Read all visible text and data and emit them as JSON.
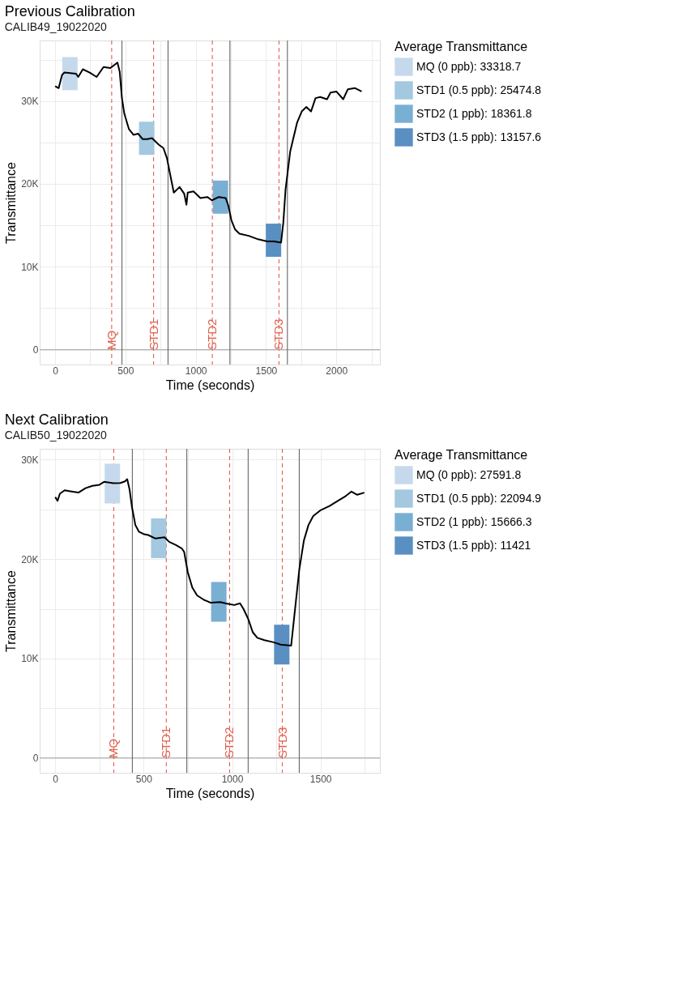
{
  "chart_data": [
    {
      "type": "line",
      "title": "Previous Calibration",
      "subtitle": "CALIB49_19022020",
      "xlabel": "Time (seconds)",
      "ylabel": "Transmittance",
      "legend_title": "Average Transmittance",
      "legend": "right",
      "grid": true,
      "xlim": [
        -110,
        2310
      ],
      "ylim": [
        -1800,
        37300
      ],
      "xticks": [
        0,
        {
          "value": 250,
          "label": null
        },
        500,
        {
          "value": 750,
          "label": null
        },
        1000,
        {
          "value": 1250,
          "label": null
        },
        1500,
        {
          "value": 1750,
          "label": null
        },
        2000,
        {
          "value": 2250,
          "label": null
        }
      ],
      "yticks": [
        0,
        {
          "value": 5000,
          "label": null
        },
        {
          "value": 10000,
          "label": "10K"
        },
        {
          "value": 15000,
          "label": null
        },
        {
          "value": 20000,
          "label": "20K"
        },
        {
          "value": 25000,
          "label": null
        },
        {
          "value": 30000,
          "label": "30K"
        },
        {
          "value": 35000,
          "label": null
        }
      ],
      "series": [
        {
          "type": "bar",
          "name": "MQ (0 ppb): 33318.7",
          "color": "#c6d9ec",
          "x": [
            105
          ],
          "values": [
            4000
          ],
          "base": [
            31300
          ]
        },
        {
          "type": "bar",
          "name": "STD1 (0.5 ppb): 25474.8",
          "color": "#a3c8e0",
          "x": [
            651
          ],
          "values": [
            4000
          ],
          "base": [
            23500
          ]
        },
        {
          "type": "bar",
          "name": "STD2 (1 ppb): 18361.8",
          "color": "#7aafd4",
          "x": [
            1176
          ],
          "values": [
            4000
          ],
          "base": [
            16400
          ]
        },
        {
          "type": "bar",
          "name": "STD3 (1.5 ppb): 13157.6",
          "color": "#5a8fc2",
          "x": [
            1553
          ],
          "values": [
            4000
          ],
          "base": [
            11200
          ]
        },
        {
          "color": "#000000",
          "x": [
            0,
            25,
            49,
            66,
            148,
            164,
            197,
            246,
            295,
            344,
            393,
            443,
            459,
            475,
            492,
            525,
            557,
            590,
            623,
            656,
            689,
            738,
            770,
            795,
            820,
            844,
            885,
            918,
            934,
            943,
            984,
            1033,
            1082,
            1115,
            1164,
            1213,
            1230,
            1254,
            1279,
            1311,
            1377,
            1443,
            1508,
            1557,
            1607,
            1623,
            1639,
            1672,
            1721,
            1754,
            1787,
            1820,
            1852,
            1885,
            1934,
            1959,
            2000,
            2049,
            2082,
            2131,
            2180
          ],
          "values": [
            31800,
            31550,
            33150,
            33430,
            33300,
            32900,
            33830,
            33430,
            32900,
            34100,
            33970,
            34640,
            33570,
            30350,
            28470,
            26600,
            25920,
            26060,
            25390,
            25390,
            25520,
            24720,
            24320,
            23110,
            20970,
            18950,
            19620,
            18820,
            17480,
            18950,
            19090,
            18280,
            18420,
            18020,
            18420,
            18280,
            17480,
            15600,
            14530,
            13990,
            13730,
            13320,
            13060,
            13060,
            12920,
            15340,
            19360,
            23910,
            27400,
            28740,
            29280,
            28740,
            30350,
            30480,
            30210,
            31020,
            31150,
            30210,
            31420,
            31560,
            31150
          ]
        }
      ],
      "ref_lines": [
        {
          "axis": "y",
          "value": 0,
          "color": "#b3b3b3",
          "line_style": "solid"
        },
        {
          "axis": "x",
          "value": 402,
          "label": "MQ",
          "color": "#e0604e",
          "line_style": "dashed"
        },
        {
          "axis": "x",
          "value": 700,
          "label": "STD1",
          "color": "#e0604e",
          "line_style": "dashed"
        },
        {
          "axis": "x",
          "value": 1118,
          "label": "STD2",
          "color": "#e0604e",
          "line_style": "dashed"
        },
        {
          "axis": "x",
          "value": 1592,
          "label": "STD3",
          "color": "#e0604e",
          "line_style": "dashed"
        },
        {
          "axis": "x",
          "value": 475,
          "color": "#666666",
          "line_style": "solid"
        },
        {
          "axis": "x",
          "value": 803,
          "color": "#666666",
          "line_style": "solid"
        },
        {
          "axis": "x",
          "value": 1243,
          "color": "#666666",
          "line_style": "solid"
        },
        {
          "axis": "x",
          "value": 1652,
          "color": "#666666",
          "line_style": "solid"
        }
      ]
    },
    {
      "type": "line",
      "title": "Next Calibration",
      "subtitle": "CALIB50_19022020",
      "xlabel": "Time (seconds)",
      "ylabel": "Transmittance",
      "legend_title": "Average Transmittance",
      "legend": "right",
      "grid": true,
      "xlim": [
        -88,
        1836
      ],
      "ylim": [
        -1500,
        31100
      ],
      "xticks": [
        0,
        {
          "value": 250,
          "label": null
        },
        500,
        {
          "value": 750,
          "label": null
        },
        1000,
        {
          "value": 1250,
          "label": null
        },
        1500,
        {
          "value": 1750,
          "label": null
        }
      ],
      "yticks": [
        0,
        {
          "value": 5000,
          "label": null
        },
        {
          "value": 10000,
          "label": "10K"
        },
        {
          "value": 15000,
          "label": null
        },
        {
          "value": 20000,
          "label": "20K"
        },
        {
          "value": 25000,
          "label": null
        },
        {
          "value": 30000,
          "label": "30K"
        }
      ],
      "series": [
        {
          "type": "bar",
          "name": "MQ (0 ppb): 27591.8",
          "color": "#c6d9ec",
          "x": [
            323
          ],
          "values": [
            4000
          ],
          "base": [
            25600
          ]
        },
        {
          "type": "bar",
          "name": "STD1 (0.5 ppb): 22094.9",
          "color": "#a3c8e0",
          "x": [
            585
          ],
          "values": [
            4000
          ],
          "base": [
            20100
          ]
        },
        {
          "type": "bar",
          "name": "STD2 (1 ppb): 15666.3",
          "color": "#7aafd4",
          "x": [
            925
          ],
          "values": [
            4000
          ],
          "base": [
            13700
          ]
        },
        {
          "type": "bar",
          "name": "STD3 (1.5 ppb): 11421",
          "color": "#5a8fc2",
          "x": [
            1281
          ],
          "values": [
            4000
          ],
          "base": [
            9400
          ]
        },
        {
          "color": "#000000",
          "x": [
            0,
            13,
            26,
            53,
            92,
            131,
            171,
            210,
            250,
            276,
            329,
            368,
            394,
            407,
            420,
            434,
            453,
            473,
            499,
            526,
            565,
            618,
            644,
            683,
            716,
            729,
            749,
            775,
            802,
            841,
            880,
            933,
            972,
            1012,
            1045,
            1064,
            1091,
            1117,
            1143,
            1183,
            1235,
            1275,
            1334,
            1353,
            1380,
            1406,
            1432,
            1459,
            1498,
            1551,
            1603,
            1643,
            1675,
            1708,
            1748
          ],
          "values": [
            26240,
            25860,
            26580,
            26920,
            26800,
            26690,
            27140,
            27370,
            27480,
            27770,
            27640,
            27660,
            27820,
            28040,
            27030,
            25230,
            23430,
            22760,
            22530,
            22420,
            22080,
            22190,
            21740,
            21410,
            21070,
            20730,
            18710,
            17140,
            16350,
            15900,
            15610,
            15670,
            15520,
            15380,
            15560,
            15000,
            13990,
            12640,
            12080,
            11850,
            11630,
            11400,
            11290,
            14440,
            18930,
            21860,
            23430,
            24330,
            24890,
            25340,
            25910,
            26350,
            26800,
            26470,
            26690
          ]
        }
      ],
      "ref_lines": [
        {
          "axis": "y",
          "value": 0,
          "color": "#b3b3b3",
          "line_style": "solid"
        },
        {
          "axis": "x",
          "value": 331,
          "label": "MQ",
          "color": "#e0604e",
          "line_style": "dashed"
        },
        {
          "axis": "x",
          "value": 628,
          "label": "STD1",
          "color": "#e0604e",
          "line_style": "dashed"
        },
        {
          "axis": "x",
          "value": 986,
          "label": "STD2",
          "color": "#e0604e",
          "line_style": "dashed"
        },
        {
          "axis": "x",
          "value": 1284,
          "label": "STD3",
          "color": "#e0604e",
          "line_style": "dashed"
        },
        {
          "axis": "x",
          "value": 436,
          "color": "#666666",
          "line_style": "solid"
        },
        {
          "axis": "x",
          "value": 744,
          "color": "#666666",
          "line_style": "solid"
        },
        {
          "axis": "x",
          "value": 1091,
          "color": "#666666",
          "line_style": "solid"
        },
        {
          "axis": "x",
          "value": 1380,
          "color": "#666666",
          "line_style": "solid"
        }
      ]
    }
  ]
}
